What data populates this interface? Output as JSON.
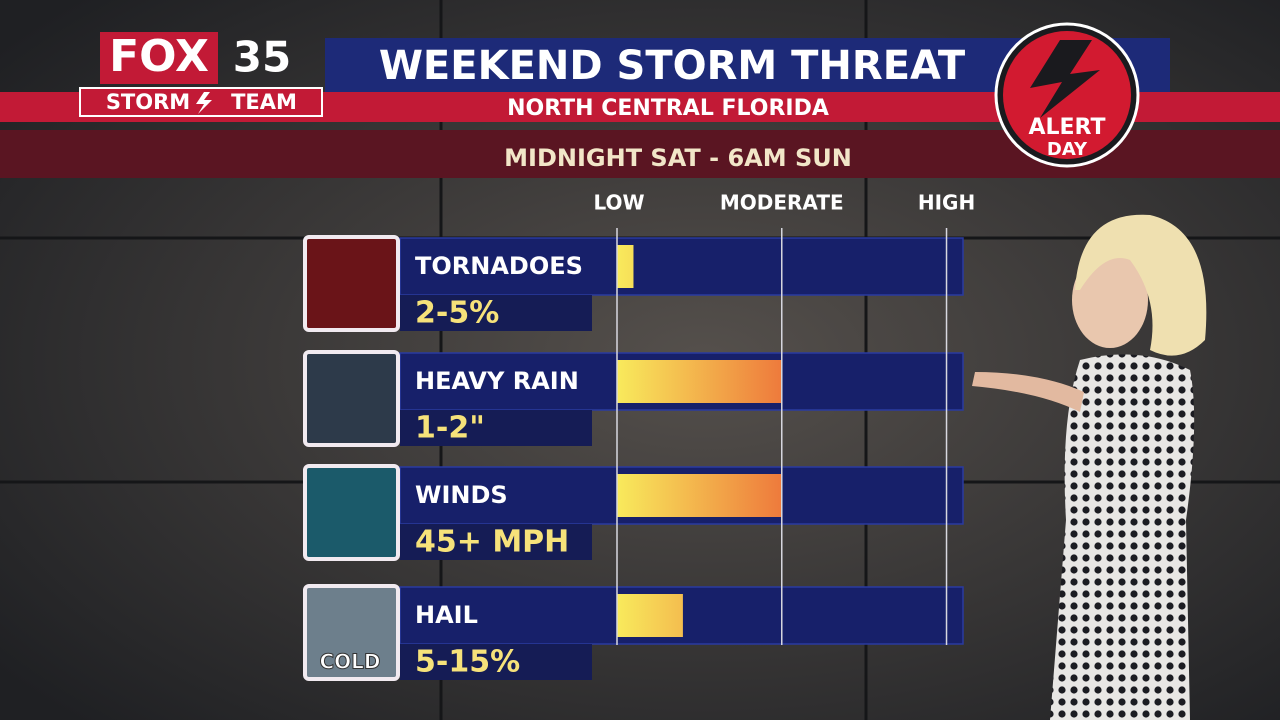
{
  "logo": {
    "brand": "FOX",
    "channel": "35",
    "team_left": "STORM",
    "team_right": "TEAM"
  },
  "badge": {
    "top": "ALERT",
    "bottom": "DAY"
  },
  "chart_data": {
    "type": "bar",
    "title": "WEEKEND STORM THREAT",
    "subtitle": "NORTH CENTRAL FLORIDA",
    "period": "MIDNIGHT SAT - 6AM SUN",
    "categories": [
      "TORNADOES",
      "HEAVY RAIN",
      "WINDS",
      "HAIL"
    ],
    "details": [
      "2-5%",
      "1-2\"",
      "45+ MPH",
      "5-15%"
    ],
    "icon_text": "COLD",
    "values": [
      0.1,
      1.0,
      1.0,
      0.4
    ],
    "xlim": [
      0,
      2.1
    ],
    "xticks": [
      {
        "value": 0,
        "label": "LOW"
      },
      {
        "value": 1,
        "label": "MODERATE"
      },
      {
        "value": 2,
        "label": "HIGH"
      }
    ],
    "grid": true,
    "color_start": "#f8ea5c",
    "color_end": "#ee7a3c"
  }
}
